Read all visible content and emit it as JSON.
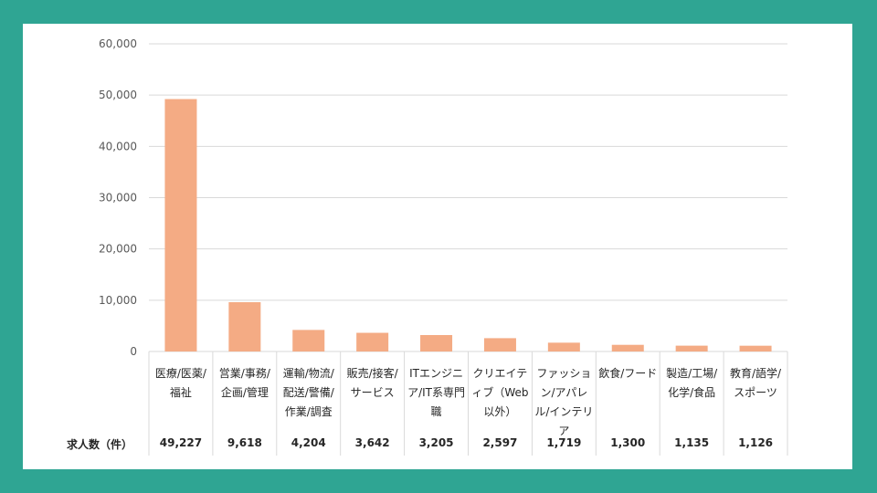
{
  "chart_data": {
    "type": "bar",
    "title": "",
    "xlabel": "",
    "ylabel": "",
    "ylim": [
      0,
      60000
    ],
    "yticks": [
      "0",
      "10,000",
      "20,000",
      "30,000",
      "40,000",
      "50,000",
      "60,000"
    ],
    "grid": true,
    "bar_color": "#f4ab84",
    "categories": [
      "医療/医薬/福祉",
      "営業/事務/企画/管理",
      "運輸/物流/配送/警備/作業/調査",
      "販売/接客/サービス",
      "ITエンジニア/IT系専門職",
      "クリエイティブ（Web以外）",
      "ファッション/アパレル/インテリア",
      "飲食/フード",
      "製造/工場/化学/食品",
      "教育/語学/スポーツ"
    ],
    "values": [
      49227,
      9618,
      4204,
      3642,
      3205,
      2597,
      1719,
      1300,
      1135,
      1126
    ],
    "table_row": {
      "header": "求人数（件）",
      "values": [
        "49,227",
        "9,618",
        "4,204",
        "3,642",
        "3,205",
        "2,597",
        "1,719",
        "1,300",
        "1,135",
        "1,126"
      ]
    }
  }
}
